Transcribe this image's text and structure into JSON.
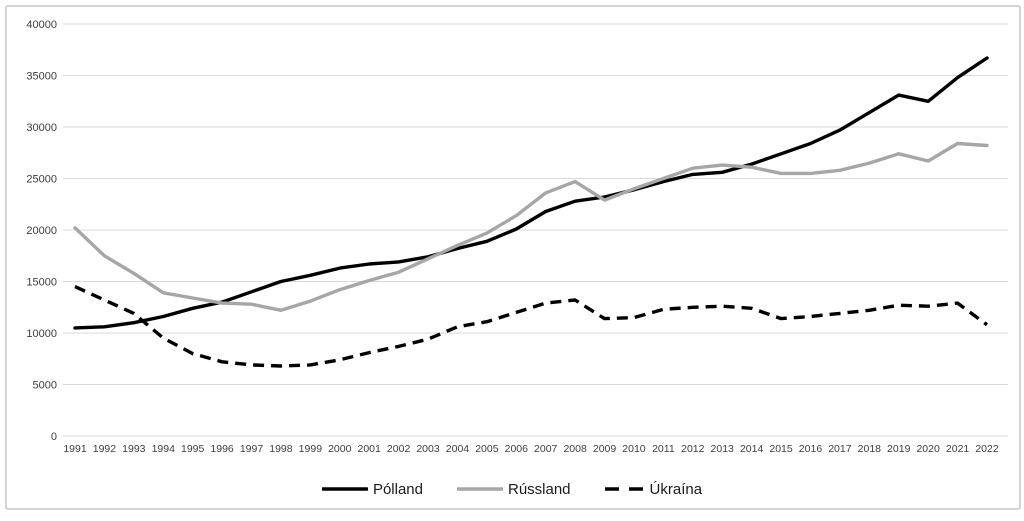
{
  "figure": {
    "background": "#ffffff",
    "border_color": "#d4d4d4",
    "gridline_color": "#d9d9d9",
    "tick_label_color": "#3d3d3d"
  },
  "chart_data": {
    "type": "line",
    "title": "",
    "xlabel": "",
    "ylabel": "",
    "grid": "horizontal",
    "legend_position": "bottom",
    "ylim": [
      0,
      40000
    ],
    "ytick_interval": 5000,
    "yticks": [
      "0",
      "5000",
      "10000",
      "15000",
      "20000",
      "25000",
      "30000",
      "35000",
      "40000"
    ],
    "x": [
      "1991",
      "1992",
      "1993",
      "1994",
      "1995",
      "1996",
      "1997",
      "1998",
      "1999",
      "2000",
      "2001",
      "2002",
      "2003",
      "2004",
      "2005",
      "2006",
      "2007",
      "2008",
      "2009",
      "2010",
      "2011",
      "2012",
      "2013",
      "2014",
      "2015",
      "2016",
      "2017",
      "2018",
      "2019",
      "2020",
      "2021",
      "2022"
    ],
    "series": [
      {
        "name": "Pólland",
        "color": "#000000",
        "style": "solid",
        "width": 3.4,
        "values": [
          10500,
          10600,
          11000,
          11600,
          12400,
          13000,
          14000,
          15000,
          15600,
          16300,
          16700,
          16900,
          17400,
          18200,
          18900,
          20100,
          21800,
          22800,
          23200,
          23900,
          24700,
          25400,
          25600,
          26400,
          27400,
          28400,
          29700,
          31400,
          33100,
          32500,
          34800,
          36700
        ]
      },
      {
        "name": "Rússland",
        "color": "#a6a6a6",
        "style": "solid",
        "width": 3.4,
        "values": [
          20200,
          17500,
          15800,
          13900,
          13400,
          12900,
          12800,
          12200,
          13100,
          14200,
          15100,
          15900,
          17200,
          18500,
          19700,
          21400,
          23600,
          24700,
          22900,
          24000,
          25000,
          26000,
          26300,
          26100,
          25500,
          25500,
          25800,
          26500,
          27400,
          26700,
          28400,
          28200
        ]
      },
      {
        "name": "Úkraína",
        "color": "#000000",
        "style": "dashed",
        "width": 3.4,
        "values": [
          14500,
          13200,
          11900,
          9500,
          8000,
          7200,
          6900,
          6800,
          6900,
          7400,
          8100,
          8700,
          9400,
          10600,
          11100,
          12000,
          12900,
          13200,
          11400,
          11500,
          12300,
          12500,
          12600,
          12400,
          11400,
          11600,
          11900,
          12200,
          12700,
          12600,
          12900,
          10800
        ]
      }
    ]
  }
}
